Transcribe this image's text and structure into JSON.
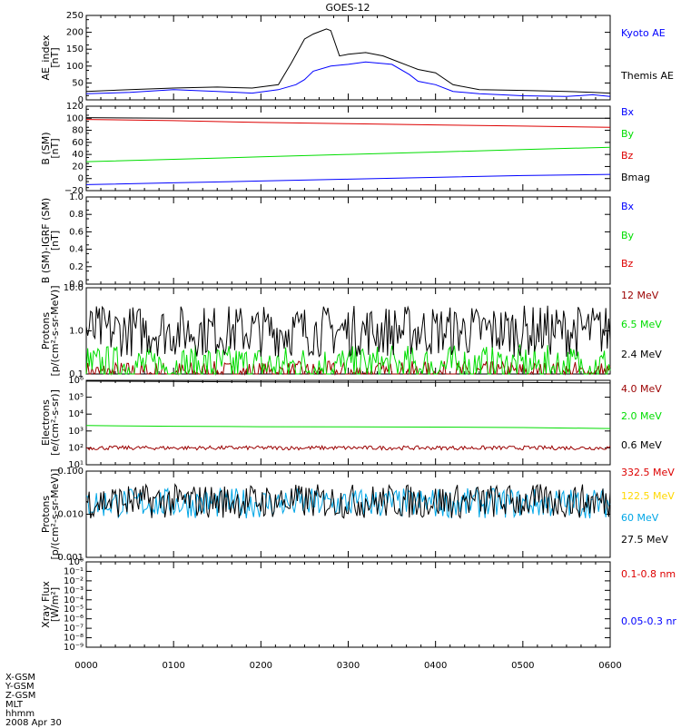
{
  "title": "GOES-12",
  "date": "2008 Apr 30",
  "footer_labels": [
    "X-GSM",
    "Y-GSM",
    "Z-GSM",
    "MLT",
    "hhmm"
  ],
  "x_ticks": [
    "0000",
    "0100",
    "0200",
    "0300",
    "0400",
    "0500",
    "0600"
  ],
  "colors": {
    "black": "#000000",
    "blue": "#0000ff",
    "red": "#dd0000",
    "green": "#00dd00",
    "darkred": "#9b0000",
    "cyan": "#00a6e6",
    "yellow": "#ffd800"
  },
  "chart_data": [
    {
      "type": "line",
      "ylabel": [
        "AE_index",
        "[nT]"
      ],
      "ylim": [
        0,
        250
      ],
      "yticks": [
        "0",
        "50",
        "100",
        "150",
        "200",
        "250"
      ],
      "x_range_hours": [
        0,
        6
      ],
      "series": [
        {
          "name": "Kyoto AE",
          "color": "#0000ff",
          "x": [
            0,
            0.5,
            1.0,
            1.5,
            1.9,
            2.2,
            2.4,
            2.5,
            2.6,
            2.8,
            3.0,
            3.2,
            3.5,
            3.7,
            3.8,
            4.0,
            4.2,
            4.5,
            5.0,
            5.5,
            5.8,
            6.0
          ],
          "y": [
            18,
            22,
            30,
            25,
            20,
            30,
            45,
            60,
            85,
            100,
            105,
            112,
            105,
            75,
            55,
            45,
            25,
            18,
            12,
            10,
            15,
            10
          ]
        },
        {
          "name": "Themis AE",
          "color": "#000000",
          "x": [
            0,
            0.5,
            1.0,
            1.5,
            1.9,
            2.2,
            2.35,
            2.5,
            2.6,
            2.75,
            2.8,
            2.9,
            3.0,
            3.2,
            3.4,
            3.5,
            3.7,
            3.8,
            4.0,
            4.2,
            4.5,
            5.0,
            5.5,
            5.8,
            6.0
          ],
          "y": [
            25,
            30,
            35,
            38,
            35,
            45,
            110,
            180,
            195,
            210,
            205,
            130,
            135,
            140,
            130,
            120,
            100,
            90,
            80,
            45,
            30,
            28,
            25,
            22,
            20
          ]
        }
      ]
    },
    {
      "type": "line",
      "ylabel": [
        "B (SM)",
        "[nT]"
      ],
      "ylim": [
        -20,
        120
      ],
      "yticks": [
        "−20",
        "0",
        "20",
        "40",
        "60",
        "80",
        "100",
        "120"
      ],
      "series": [
        {
          "name": "Bx",
          "color": "#0000ff",
          "x": [
            0,
            1,
            2,
            3,
            4,
            5,
            6
          ],
          "y": [
            -10,
            -7,
            -4,
            -1,
            2,
            5,
            7
          ]
        },
        {
          "name": "By",
          "color": "#00dd00",
          "x": [
            0,
            1,
            2,
            3,
            4,
            5,
            6
          ],
          "y": [
            28,
            32,
            36,
            40,
            44,
            48,
            52
          ]
        },
        {
          "name": "Bz",
          "color": "#dd0000",
          "x": [
            0,
            1,
            2,
            3,
            4,
            5,
            6
          ],
          "y": [
            98,
            96,
            93,
            91,
            89,
            87,
            85
          ]
        },
        {
          "name": "Bmag",
          "color": "#000000",
          "x": [
            0,
            1,
            2,
            3,
            4,
            5,
            6
          ],
          "y": [
            101,
            100,
            100,
            100,
            100,
            100,
            100
          ]
        }
      ]
    },
    {
      "type": "line",
      "ylabel": [
        "B (SM)-IGRF (SM)",
        "[nT]"
      ],
      "ylim": [
        0,
        1
      ],
      "yticks": [
        "0.0",
        "0.2",
        "0.4",
        "0.6",
        "0.8",
        "1.0"
      ],
      "series": [
        {
          "name": "Bx",
          "color": "#0000ff",
          "x": [],
          "y": []
        },
        {
          "name": "By",
          "color": "#00dd00",
          "x": [],
          "y": []
        },
        {
          "name": "Bz",
          "color": "#dd0000",
          "x": [],
          "y": []
        }
      ]
    },
    {
      "type": "line",
      "log": true,
      "ylabel": [
        "Protons",
        "[p/(cm²-s-sr-MeV)]"
      ],
      "ylim": [
        0.1,
        10
      ],
      "yticks": [
        "0.1",
        "1.0",
        "10.0"
      ],
      "series": [
        {
          "name": "12 MeV",
          "color": "#9b0000",
          "noisy": true,
          "level": 0.1,
          "spread": 0.3
        },
        {
          "name": "6.5 MeV",
          "color": "#00dd00",
          "noisy": true,
          "level": 0.15,
          "spread": 0.5
        },
        {
          "name": "2.4 MeV",
          "color": "#000000",
          "noisy": true,
          "level": 1.0,
          "spread": 0.6
        }
      ]
    },
    {
      "type": "line",
      "log": true,
      "ylabel": [
        "Electrons",
        "[e/(cm²-s-sr)]"
      ],
      "ylim": [
        10,
        1000000
      ],
      "yticks": [
        "10¹",
        "10²",
        "10³",
        "10⁴",
        "10⁵",
        "10⁶"
      ],
      "series": [
        {
          "name": "4.0 MeV",
          "color": "#9b0000",
          "noisy": true,
          "level": 100,
          "spread": 0.12
        },
        {
          "name": "2.0 MeV",
          "color": "#00dd00",
          "x": [
            0,
            1,
            2,
            3,
            4,
            5,
            6
          ],
          "y": [
            2100,
            1900,
            1800,
            1750,
            1700,
            1600,
            1400
          ]
        },
        {
          "name": "0.6 MeV",
          "color": "#000000",
          "x": [
            0,
            1,
            2,
            3,
            4,
            5,
            6
          ],
          "y": [
            900000,
            850000,
            800000,
            780000,
            760000,
            740000,
            700000
          ]
        }
      ]
    },
    {
      "type": "line",
      "log": true,
      "ylabel": [
        "Protons",
        "[p/(cm²-s-sr-MeV)]"
      ],
      "ylim": [
        0.001,
        0.1
      ],
      "yticks": [
        "0.001",
        "0.010",
        "0.100"
      ],
      "series": [
        {
          "name": "332.5 MeV",
          "color": "#dd0000",
          "x": [],
          "y": []
        },
        {
          "name": "122.5 MeV",
          "color": "#ffd800",
          "x": [],
          "y": []
        },
        {
          "name": "60 MeV",
          "color": "#00a6e6",
          "noisy": true,
          "level": 0.018,
          "spread": 0.35
        },
        {
          "name": "27.5 MeV",
          "color": "#000000",
          "noisy": true,
          "level": 0.02,
          "spread": 0.4
        }
      ]
    },
    {
      "type": "line",
      "log": true,
      "ylabel": [
        "Xray Flux",
        "[W/m²]"
      ],
      "ylim": [
        1e-09,
        1
      ],
      "yticks": [
        "10⁻⁹",
        "10⁻⁸",
        "10⁻⁷",
        "10⁻⁶",
        "10⁻⁵",
        "10⁻⁴",
        "10⁻³",
        "10⁻²",
        "10⁻¹",
        "10⁰"
      ],
      "series": [
        {
          "name": "0.1-0.8 nm",
          "color": "#dd0000",
          "x": [],
          "y": []
        },
        {
          "name": "0.05-0.3 nr",
          "color": "#0000ff",
          "x": [],
          "y": []
        }
      ]
    }
  ]
}
